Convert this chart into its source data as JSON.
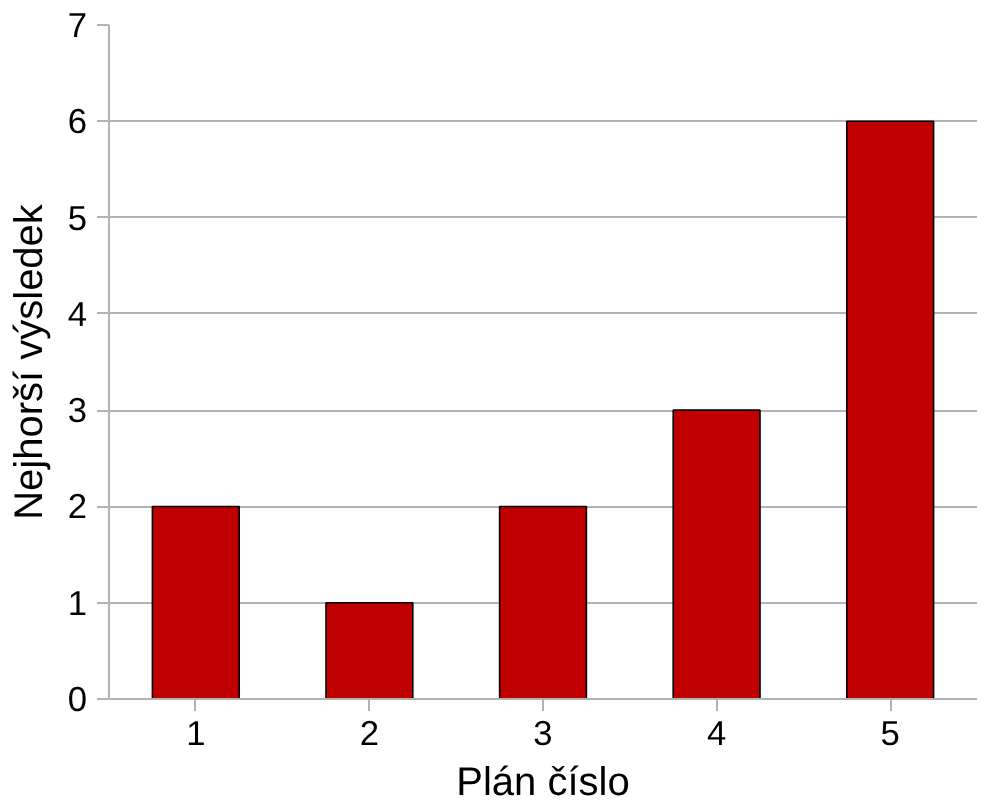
{
  "chart_data": {
    "type": "bar",
    "xlabel": "Plán číslo",
    "ylabel": "Nejhorší výsledek",
    "categories": [
      "1",
      "2",
      "3",
      "4",
      "5"
    ],
    "values": [
      2,
      1,
      2,
      3,
      6
    ],
    "color": "#c00000",
    "ylim": [
      0,
      7
    ],
    "yticks": [
      0,
      1,
      2,
      3,
      4,
      5,
      6,
      7
    ],
    "grid": "y"
  }
}
